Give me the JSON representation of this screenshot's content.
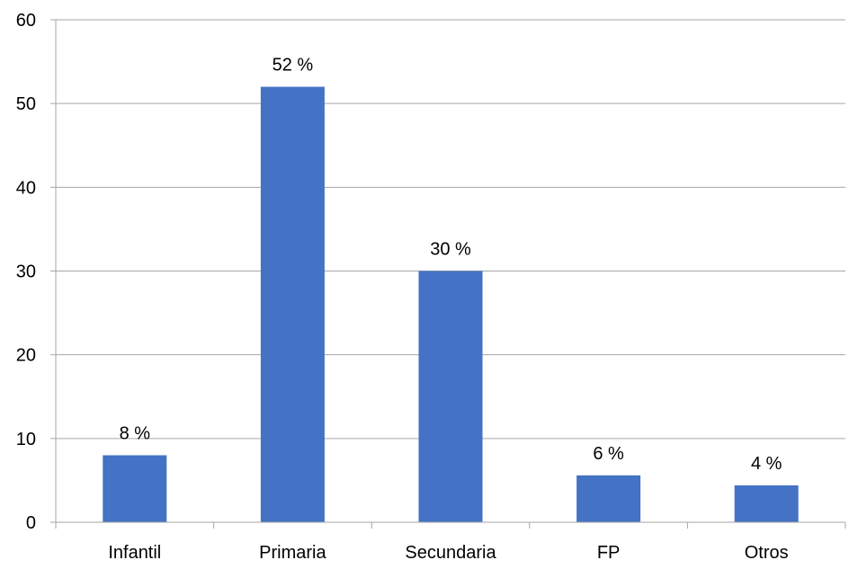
{
  "chart_data": {
    "type": "bar",
    "title": "",
    "xlabel": "",
    "ylabel": "",
    "categories": [
      "Infantil",
      "Primaria",
      "Secundaria",
      "FP",
      "Otros"
    ],
    "values": [
      8,
      52,
      30,
      5.6,
      4.4
    ],
    "data_labels": [
      "8 %",
      "52 %",
      "30 %",
      "6 %",
      "4 %"
    ],
    "ylim": [
      0,
      60
    ],
    "yticks": [
      0,
      10,
      20,
      30,
      40,
      50,
      60
    ],
    "grid": true,
    "legend": "none",
    "bar_color": "#4472C4",
    "grid_color": "#A6A6A6",
    "axis_color": "#A6A6A6"
  }
}
